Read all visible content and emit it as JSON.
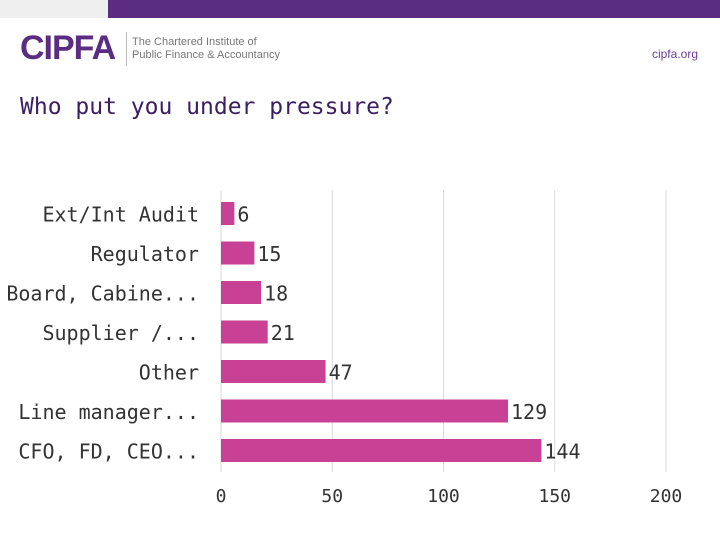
{
  "header": {
    "logo_text": "CIPFA",
    "tagline_line1": "The Chartered Institute of",
    "tagline_line2": "Public Finance & Accountancy",
    "site": "cipfa.org"
  },
  "chart_data": {
    "type": "bar",
    "orientation": "horizontal",
    "title": "Who put you under pressure?",
    "categories": [
      "Ext/Int Audit",
      "Regulator",
      "Board, Cabine...",
      "Supplier /...",
      "Other",
      "Line manager...",
      "CFO, FD, CEO..."
    ],
    "values": [
      6,
      15,
      18,
      21,
      47,
      129,
      144
    ],
    "xlim": [
      0,
      200
    ],
    "xticks": [
      0,
      50,
      100,
      150,
      200
    ],
    "xlabel": "",
    "ylabel": "",
    "grid": true,
    "bar_color": "#c94195",
    "grid_color": "#d9d9d9",
    "label_color": "#333333"
  }
}
